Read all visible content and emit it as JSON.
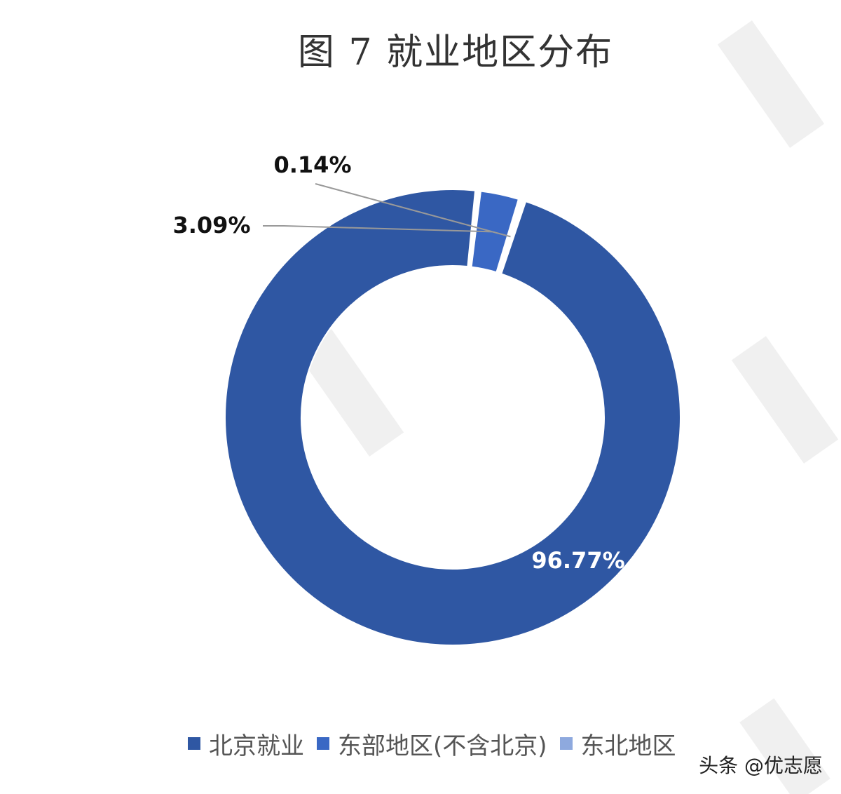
{
  "chart_data": {
    "type": "pie",
    "style": "donut",
    "title": "图 7  就业地区分布",
    "categories": [
      "北京就业",
      "东部地区(不含北京)",
      "东北地区"
    ],
    "values": [
      96.77,
      3.09,
      0.14
    ],
    "data_labels": [
      "96.77%",
      "3.09%",
      "0.14%"
    ],
    "colors": [
      "#2f57a3",
      "#3a68c4",
      "#8ea9de"
    ],
    "legend_position": "bottom"
  },
  "credit": "头条 @优志愿"
}
